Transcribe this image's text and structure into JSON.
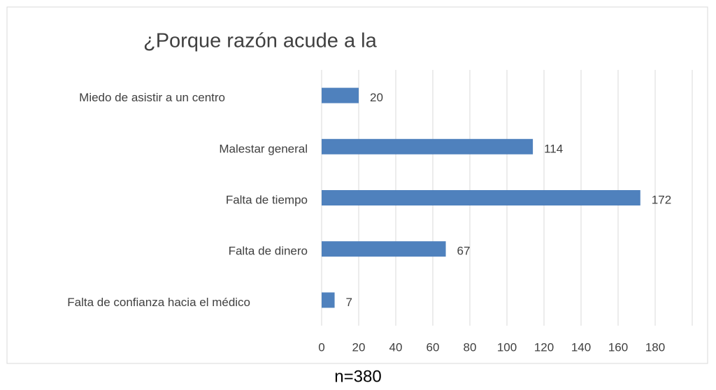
{
  "chart_data": {
    "type": "barh",
    "title": "¿Porque razón acude a la",
    "categories": [
      "Miedo de asistir a un centro",
      "Malestar general",
      "Falta de tiempo",
      "Falta de dinero",
      "Falta de confianza hacia el médico"
    ],
    "values": [
      20,
      114,
      172,
      67,
      7
    ],
    "color": "#4f81bd",
    "xlim": [
      0,
      200
    ],
    "xticks": [
      0,
      20,
      40,
      60,
      80,
      100,
      120,
      140,
      160,
      180
    ],
    "grid": true,
    "note": "n=380"
  }
}
